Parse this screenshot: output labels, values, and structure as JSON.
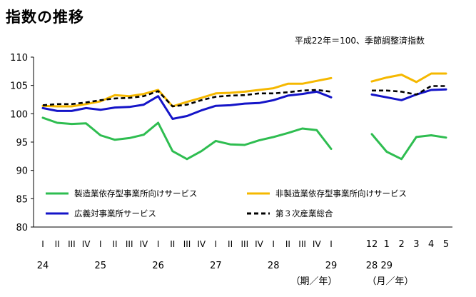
{
  "title": "指数の推移",
  "chart_data": {
    "type": "line",
    "title": "指数の推移",
    "subtitle": "平成22年＝100、季節調整済指数",
    "ylim": [
      80,
      110
    ],
    "yticks": [
      "80",
      "85",
      "90",
      "95",
      "100",
      "105",
      "110"
    ],
    "grid": false,
    "legend_position": "inside-bottom",
    "quarterly": {
      "periods": [
        "I",
        "II",
        "III",
        "IV",
        "I",
        "II",
        "III",
        "IV",
        "I",
        "II",
        "III",
        "IV",
        "I",
        "II",
        "III",
        "IV",
        "I",
        "II",
        "III",
        "IV",
        "I"
      ],
      "year_labels": [
        {
          "label": "24",
          "index": 0
        },
        {
          "label": "25",
          "index": 4
        },
        {
          "label": "26",
          "index": 8
        },
        {
          "label": "27",
          "index": 12
        },
        {
          "label": "28",
          "index": 16
        },
        {
          "label": "29",
          "index": 20
        }
      ],
      "unit_label": "（期／年）"
    },
    "monthly": {
      "periods": [
        "12",
        "1",
        "2",
        "3",
        "4",
        "5"
      ],
      "year_labels": [
        {
          "label": "28",
          "index": 0
        },
        {
          "label": "29",
          "index": 1
        }
      ],
      "unit_label": "（月／年）"
    },
    "series": [
      {
        "name": "製造業依存型事業所向けサービス",
        "color": "#2ebd50",
        "dash": "solid",
        "quarterly": [
          99.3,
          98.4,
          98.2,
          98.3,
          96.2,
          95.4,
          95.7,
          96.3,
          98.4,
          93.4,
          92.0,
          93.4,
          95.2,
          94.6,
          94.5,
          95.3,
          95.9,
          96.6,
          97.4,
          97.1,
          93.8
        ],
        "monthly": [
          96.4,
          93.3,
          92.0,
          95.9,
          96.2,
          95.8
        ]
      },
      {
        "name": "非製造業依存型事業所向けサービス",
        "color": "#f5b800",
        "dash": "solid",
        "quarterly": [
          101.4,
          101.3,
          101.3,
          101.7,
          102.2,
          103.3,
          103.1,
          103.5,
          104.2,
          101.3,
          102.1,
          102.8,
          103.6,
          103.7,
          103.9,
          104.2,
          104.5,
          105.3,
          105.3,
          105.8,
          106.3
        ],
        "monthly": [
          105.7,
          106.4,
          106.9,
          105.6,
          107.1,
          107.1
        ]
      },
      {
        "name": "広義対事業所サービス",
        "color": "#1414c8",
        "dash": "solid",
        "quarterly": [
          101.0,
          100.5,
          100.5,
          101.0,
          100.7,
          101.1,
          101.2,
          101.6,
          103.1,
          99.1,
          99.6,
          100.6,
          101.4,
          101.5,
          101.8,
          101.9,
          102.4,
          103.2,
          103.5,
          103.9,
          102.9
        ],
        "monthly": [
          103.4,
          102.9,
          102.4,
          103.4,
          104.2,
          104.3
        ]
      },
      {
        "name": "第３次産業総合",
        "color": "#000000",
        "dash": "dashed",
        "quarterly": [
          101.5,
          101.7,
          101.7,
          102.0,
          102.4,
          102.7,
          102.8,
          103.1,
          104.0,
          101.3,
          101.6,
          102.4,
          103.0,
          103.2,
          103.3,
          103.6,
          103.6,
          103.8,
          104.1,
          104.2,
          103.9
        ],
        "monthly": [
          104.1,
          104.1,
          103.9,
          103.4,
          104.9,
          104.9
        ]
      }
    ]
  }
}
